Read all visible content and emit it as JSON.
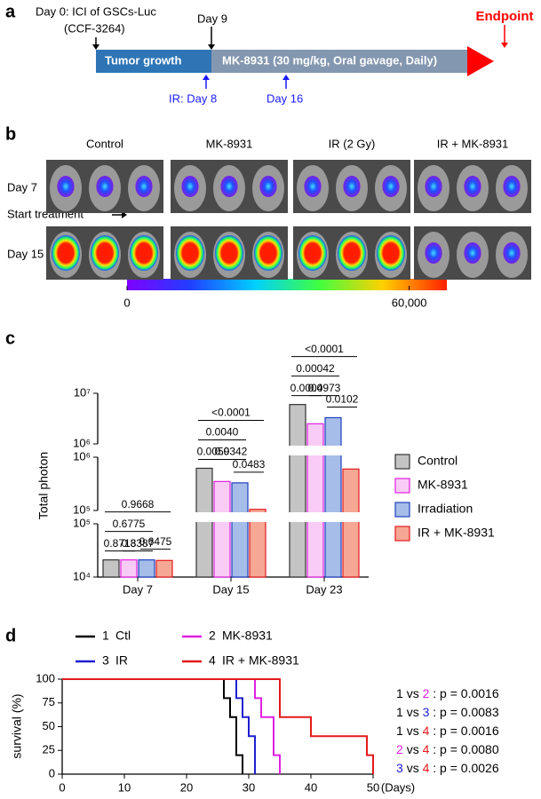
{
  "panel_a": {
    "letter": "a",
    "day0": "Day 0: ICI of GSCs-Luc",
    "cell_line": "(CCF-3264)",
    "day9": "Day 9",
    "phase1": "Tumor growth",
    "phase2": "MK-8931 (30 mg/kg, Oral gavage, Daily)",
    "endpoint": "Endpoint",
    "ir1": "IR: Day 8",
    "ir2": "Day 16"
  },
  "panel_b": {
    "letter": "b",
    "columns": [
      "Control",
      "MK-8931",
      "IR (2 Gy)",
      "IR + MK-8931"
    ],
    "rows": [
      "Day 7",
      "Day 15"
    ],
    "start": "Start treatment",
    "colorbar": {
      "clim": [
        0,
        68000
      ],
      "ticks": [
        0,
        {
          "value": 60000,
          "label": "60,000"
        }
      ]
    }
  },
  "chart_data": [
    {
      "type": "bar",
      "letter": "c",
      "ylabel": "Total photon",
      "scale": "log",
      "categories": [
        "Day 7",
        "Day 15",
        "Day 23"
      ],
      "segments": [
        {
          "ylim": [
            10000,
            100000
          ],
          "yticks": [
            {
              "value": 10000,
              "label": "10⁴"
            },
            {
              "value": 100000,
              "label": "10⁵"
            }
          ]
        },
        {
          "ylim": [
            100000,
            1000000
          ],
          "yticks": [
            {
              "value": 100000,
              "label": "10⁵"
            },
            {
              "value": 1000000,
              "label": "10⁶"
            }
          ]
        },
        {
          "ylim": [
            1000000,
            10000000
          ],
          "yticks": [
            {
              "value": 1000000,
              "label": "10⁶"
            },
            {
              "value": 10000000,
              "label": "10⁷"
            }
          ]
        }
      ],
      "series": [
        {
          "name": "Control",
          "color": "#c4c4c4",
          "edge": "#333333",
          "values": [
            21000,
            620000,
            6000000
          ]
        },
        {
          "name": "MK-8931",
          "color": "#f8ccf4",
          "edge": "#e020e0",
          "values": [
            21000,
            350000,
            2500000
          ]
        },
        {
          "name": "Irradiation",
          "color": "#a5bde8",
          "edge": "#1f3fbf",
          "values": [
            21000,
            330000,
            3300000
          ]
        },
        {
          "name": "IR + MK-8931",
          "color": "#f5a894",
          "edge": "#e41a1c",
          "values": [
            20500,
            105000,
            600000
          ]
        }
      ],
      "comparisons": [
        [
          {
            "label": "0.6475",
            "series": [
              2,
              3
            ]
          },
          {
            "label": "0.8713",
            "series": [
              0,
              1
            ]
          },
          {
            "label": "0.8387",
            "series": [
              1,
              2
            ]
          },
          {
            "label": "0.6775",
            "series": [
              0,
              2
            ]
          },
          {
            "label": "0.9668",
            "series": [
              0,
              3
            ]
          }
        ],
        [
          {
            "label": "0.0483",
            "series": [
              2,
              3
            ]
          },
          {
            "label": "0.0059",
            "series": [
              0,
              1
            ]
          },
          {
            "label": "0.0342",
            "series": [
              1,
              2
            ]
          },
          {
            "label": "0.0040",
            "series": [
              0,
              2
            ]
          },
          {
            "label": "<0.0001",
            "series": [
              0,
              3
            ]
          }
        ],
        [
          {
            "label": "0.0102",
            "series": [
              2,
              3
            ]
          },
          {
            "label": "0.0004",
            "series": [
              0,
              1
            ]
          },
          {
            "label": "0.0973",
            "series": [
              1,
              2
            ]
          },
          {
            "label": "0.00042",
            "series": [
              0,
              2
            ]
          },
          {
            "label": "<0.0001",
            "series": [
              0,
              3
            ]
          }
        ]
      ]
    },
    {
      "type": "step",
      "letter": "d",
      "ylabel": "survival (%)",
      "xunit": "(Days)",
      "xlim": [
        0,
        50
      ],
      "xticks": [
        0,
        10,
        20,
        30,
        40,
        50
      ],
      "ylim": [
        0,
        100
      ],
      "yticks": [
        0,
        25,
        50,
        75,
        100
      ],
      "series": [
        {
          "number": "1",
          "name": "Ctl",
          "color": "#000000",
          "x": [
            0,
            26,
            27,
            28,
            29
          ],
          "values": [
            100,
            80,
            60,
            20,
            0
          ]
        },
        {
          "number": "2",
          "name": "MK-8931",
          "color": "#e020e0",
          "x": [
            0,
            31,
            32,
            34,
            35
          ],
          "values": [
            100,
            80,
            60,
            20,
            0
          ]
        },
        {
          "number": "3",
          "name": "IR",
          "color": "#1f1fd0",
          "x": [
            0,
            28,
            29,
            30,
            31
          ],
          "values": [
            100,
            80,
            60,
            40,
            0
          ]
        },
        {
          "number": "4",
          "name": "IR + MK-8931",
          "color": "#e41a1c",
          "x": [
            0,
            35,
            40,
            49,
            50
          ],
          "values": [
            100,
            60,
            40,
            20,
            0
          ]
        }
      ],
      "vs": "vs",
      "colon": ":",
      "p_prefix": "p =",
      "comparisons": [
        {
          "a": "1",
          "b": "2",
          "p": "0.0016"
        },
        {
          "a": "1",
          "b": "3",
          "p": "0.0083"
        },
        {
          "a": "1",
          "b": "4",
          "p": "0.0016"
        },
        {
          "a": "2",
          "b": "4",
          "p": "0.0080"
        },
        {
          "a": "3",
          "b": "4",
          "p": "0.0026"
        }
      ]
    }
  ]
}
